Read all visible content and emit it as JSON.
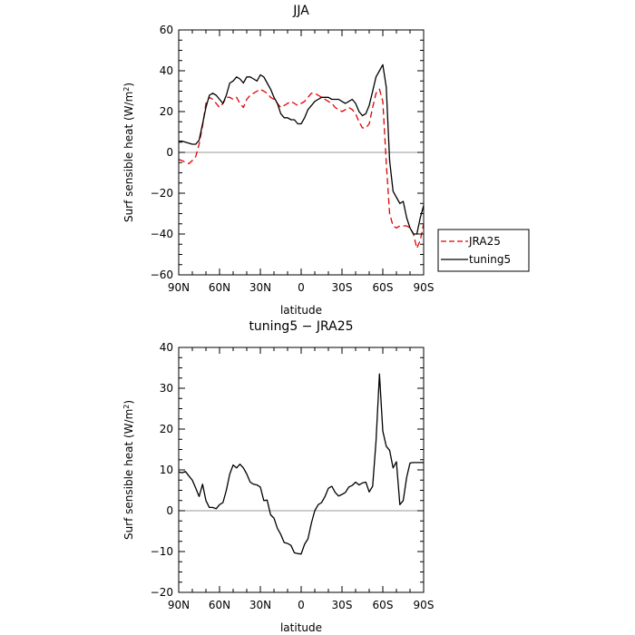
{
  "chart_data": [
    {
      "type": "line",
      "title": "JJA",
      "xlabel": "latitude",
      "ylabel": "Surf sensible heat (W/m²)",
      "ylabel_main": "Surf sensible heat (W/m",
      "ylabel_sup": "2",
      "ylabel_end": ")",
      "xlim": [
        90,
        -90
      ],
      "ylim": [
        -60,
        60
      ],
      "xticks": [
        90,
        60,
        30,
        0,
        -30,
        -60,
        -90
      ],
      "xtick_labels": [
        "90N",
        "60N",
        "30N",
        "0",
        "30S",
        "60S",
        "90S"
      ],
      "yticks": [
        -60,
        -40,
        -20,
        0,
        20,
        40,
        60
      ],
      "ytick_labels": [
        "−60",
        "−40",
        "−20",
        "0",
        "20",
        "40",
        "60"
      ],
      "legend": {
        "placement": "right",
        "entries": [
          "JRA25",
          "tuning5"
        ]
      },
      "series": [
        {
          "name": "JRA25",
          "color": "#e00000",
          "dash": "dashed",
          "x": [
            90,
            87.5,
            85,
            82.5,
            80,
            77.5,
            75,
            72.5,
            70,
            67.5,
            65,
            62.5,
            60,
            57.5,
            55,
            52.5,
            50,
            47.5,
            45,
            42.5,
            40,
            37.5,
            35,
            32.5,
            30,
            27.5,
            25,
            22.5,
            20,
            17.5,
            15,
            12.5,
            10,
            7.5,
            5,
            2.5,
            0,
            -2.5,
            -5,
            -7.5,
            -10,
            -12.5,
            -15,
            -17.5,
            -20,
            -22.5,
            -25,
            -27.5,
            -30,
            -32.5,
            -35,
            -37.5,
            -40,
            -42.5,
            -45,
            -47.5,
            -50,
            -52.5,
            -55,
            -57.5,
            -60,
            -62.5,
            -65,
            -67.5,
            -70,
            -72.5,
            -75,
            -77.5,
            -80,
            -82.5,
            -85,
            -87.5,
            -90
          ],
          "y": [
            -3.5,
            -4,
            -5,
            -5.5,
            -4,
            -2,
            4,
            13,
            24,
            27,
            26,
            24,
            22,
            24,
            27,
            27,
            26,
            27,
            24,
            22,
            26,
            28,
            29,
            30,
            31,
            30,
            29,
            27,
            26,
            24,
            22,
            23,
            24,
            25,
            24,
            23,
            24,
            25,
            27,
            29,
            29,
            28,
            27,
            26,
            25,
            24,
            22,
            21,
            20,
            21,
            22,
            21,
            19,
            15,
            12,
            12,
            14,
            22,
            29,
            31,
            25,
            -5,
            -30,
            -36,
            -37,
            -36,
            -36,
            -36,
            -37,
            -40,
            -47,
            -43,
            -35
          ]
        },
        {
          "name": "tuning5",
          "color": "#000000",
          "dash": "solid",
          "x": [
            90,
            87.5,
            85,
            82.5,
            80,
            77.5,
            75,
            72.5,
            70,
            67.5,
            65,
            62.5,
            60,
            57.5,
            55,
            52.5,
            50,
            47.5,
            45,
            42.5,
            40,
            37.5,
            35,
            32.5,
            30,
            27.5,
            25,
            22.5,
            20,
            17.5,
            15,
            12.5,
            10,
            7.5,
            5,
            2.5,
            0,
            -2.5,
            -5,
            -7.5,
            -10,
            -12.5,
            -15,
            -17.5,
            -20,
            -22.5,
            -25,
            -27.5,
            -30,
            -32.5,
            -35,
            -37.5,
            -40,
            -42.5,
            -45,
            -47.5,
            -50,
            -52.5,
            -55,
            -57.5,
            -60,
            -62.5,
            -65,
            -67.5,
            -70,
            -72.5,
            -75,
            -77.5,
            -80,
            -82.5,
            -85,
            -87.5,
            -90
          ],
          "y": [
            5.5,
            5.5,
            5,
            4.5,
            4,
            4,
            6,
            14,
            22,
            28,
            29,
            28,
            26,
            24,
            28,
            34,
            35,
            37,
            36,
            34,
            37,
            37,
            36,
            35,
            38,
            37,
            34,
            31,
            27,
            24,
            19,
            17,
            17,
            16,
            16,
            14,
            14,
            17,
            21,
            23,
            25,
            26,
            27,
            27,
            27,
            26,
            26,
            26,
            25,
            24,
            25,
            26,
            24,
            20,
            18,
            19,
            23,
            30,
            37,
            40,
            43,
            32,
            -4,
            -19,
            -22,
            -25,
            -24,
            -32,
            -37,
            -40,
            -40,
            -32,
            -26
          ]
        }
      ]
    },
    {
      "type": "line",
      "title": "tuning5 − JRA25",
      "xlabel": "latitude",
      "ylabel": "Surf sensible heat (W/m²)",
      "ylabel_main": "Surf sensible heat (W/m",
      "ylabel_sup": "2",
      "ylabel_end": ")",
      "xlim": [
        90,
        -90
      ],
      "ylim": [
        -20,
        40
      ],
      "xticks": [
        90,
        60,
        30,
        0,
        -30,
        -60,
        -90
      ],
      "xtick_labels": [
        "90N",
        "60N",
        "30N",
        "0",
        "30S",
        "60S",
        "90S"
      ],
      "yticks": [
        -20,
        -10,
        0,
        10,
        20,
        30,
        40
      ],
      "ytick_labels": [
        "−20",
        "−10",
        "0",
        "10",
        "20",
        "30",
        "40"
      ],
      "series": [
        {
          "color": "#000000",
          "dash": "solid",
          "x": [
            90,
            87.5,
            85,
            82.5,
            80,
            77.5,
            75,
            72.5,
            70,
            67.5,
            65,
            62.5,
            60,
            57.5,
            55,
            52.5,
            50,
            47.5,
            45,
            42.5,
            40,
            37.5,
            35,
            32.5,
            30,
            27.5,
            25,
            22.5,
            20,
            17.5,
            15,
            12.5,
            10,
            7.5,
            5,
            2.5,
            0,
            -2.5,
            -5,
            -7.5,
            -10,
            -12.5,
            -15,
            -17.5,
            -20,
            -22.5,
            -25,
            -27.5,
            -30,
            -32.5,
            -35,
            -37.5,
            -40,
            -42.5,
            -45,
            -47.5,
            -50,
            -52.5,
            -55,
            -57.5,
            -60,
            -62.5,
            -65,
            -67.5,
            -70,
            -72.5,
            -75,
            -77.5,
            -80,
            -82.5,
            -85,
            -87.5,
            -90
          ],
          "y": [
            9.5,
            9.3,
            9.6,
            8.5,
            7.5,
            5.5,
            3.5,
            6.5,
            2.5,
            0.8,
            0.8,
            0.5,
            1.5,
            2,
            5,
            9,
            11.2,
            10.5,
            11.4,
            10.5,
            9,
            7,
            6.5,
            6.3,
            5.8,
            2.5,
            2.6,
            -1,
            -1.8,
            -4.3,
            -5.8,
            -7.8,
            -8,
            -8.5,
            -10.3,
            -10.5,
            -10.6,
            -8.2,
            -6.9,
            -3,
            0,
            1.5,
            2,
            3.5,
            5.5,
            6,
            4.5,
            3.6,
            4,
            4.5,
            5.8,
            6.2,
            7,
            6.3,
            6.8,
            7,
            4.6,
            6,
            17,
            33.5,
            19.5,
            15.8,
            14.8,
            10.5,
            12,
            1.5,
            2.5,
            8.2,
            11.7,
            11.8,
            11.8,
            11.8,
            11.8
          ]
        }
      ]
    }
  ]
}
